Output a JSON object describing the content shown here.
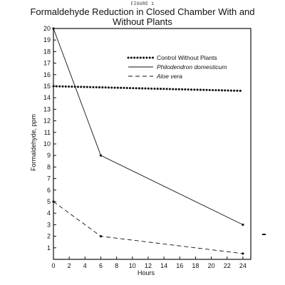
{
  "figure_label": "FIGURE 1",
  "title_line1": "Formaldehyde Reduction in Closed Chamber With and",
  "title_line2": "Without Plants",
  "chart_data": {
    "type": "line",
    "title": "Formaldehyde Reduction in Closed Chamber With and Without Plants",
    "xlabel": "Hours",
    "ylabel": "Formaldehyde, ppm",
    "xlim": [
      0,
      25
    ],
    "ylim": [
      0,
      20
    ],
    "x_ticks": [
      0,
      2,
      4,
      6,
      8,
      10,
      12,
      14,
      16,
      18,
      20,
      22,
      24
    ],
    "y_ticks": [
      1,
      2,
      3,
      4,
      5,
      6,
      7,
      8,
      9,
      10,
      11,
      12,
      13,
      14,
      15,
      16,
      17,
      18,
      19,
      20
    ],
    "grid": false,
    "legend_position": "top-right",
    "series": [
      {
        "name": "Control Without Plants",
        "style": "dotted",
        "italic": false,
        "x": [
          0,
          6,
          24
        ],
        "y": [
          15.0,
          14.9,
          14.6
        ]
      },
      {
        "name": "Philodendron domesticum",
        "style": "solid",
        "italic": true,
        "x": [
          0,
          6,
          24
        ],
        "y": [
          20.0,
          9.0,
          3.0
        ]
      },
      {
        "name": "Aloe vera",
        "style": "dashed",
        "italic": true,
        "x": [
          0,
          6,
          24
        ],
        "y": [
          5.0,
          2.0,
          0.5
        ]
      }
    ]
  }
}
